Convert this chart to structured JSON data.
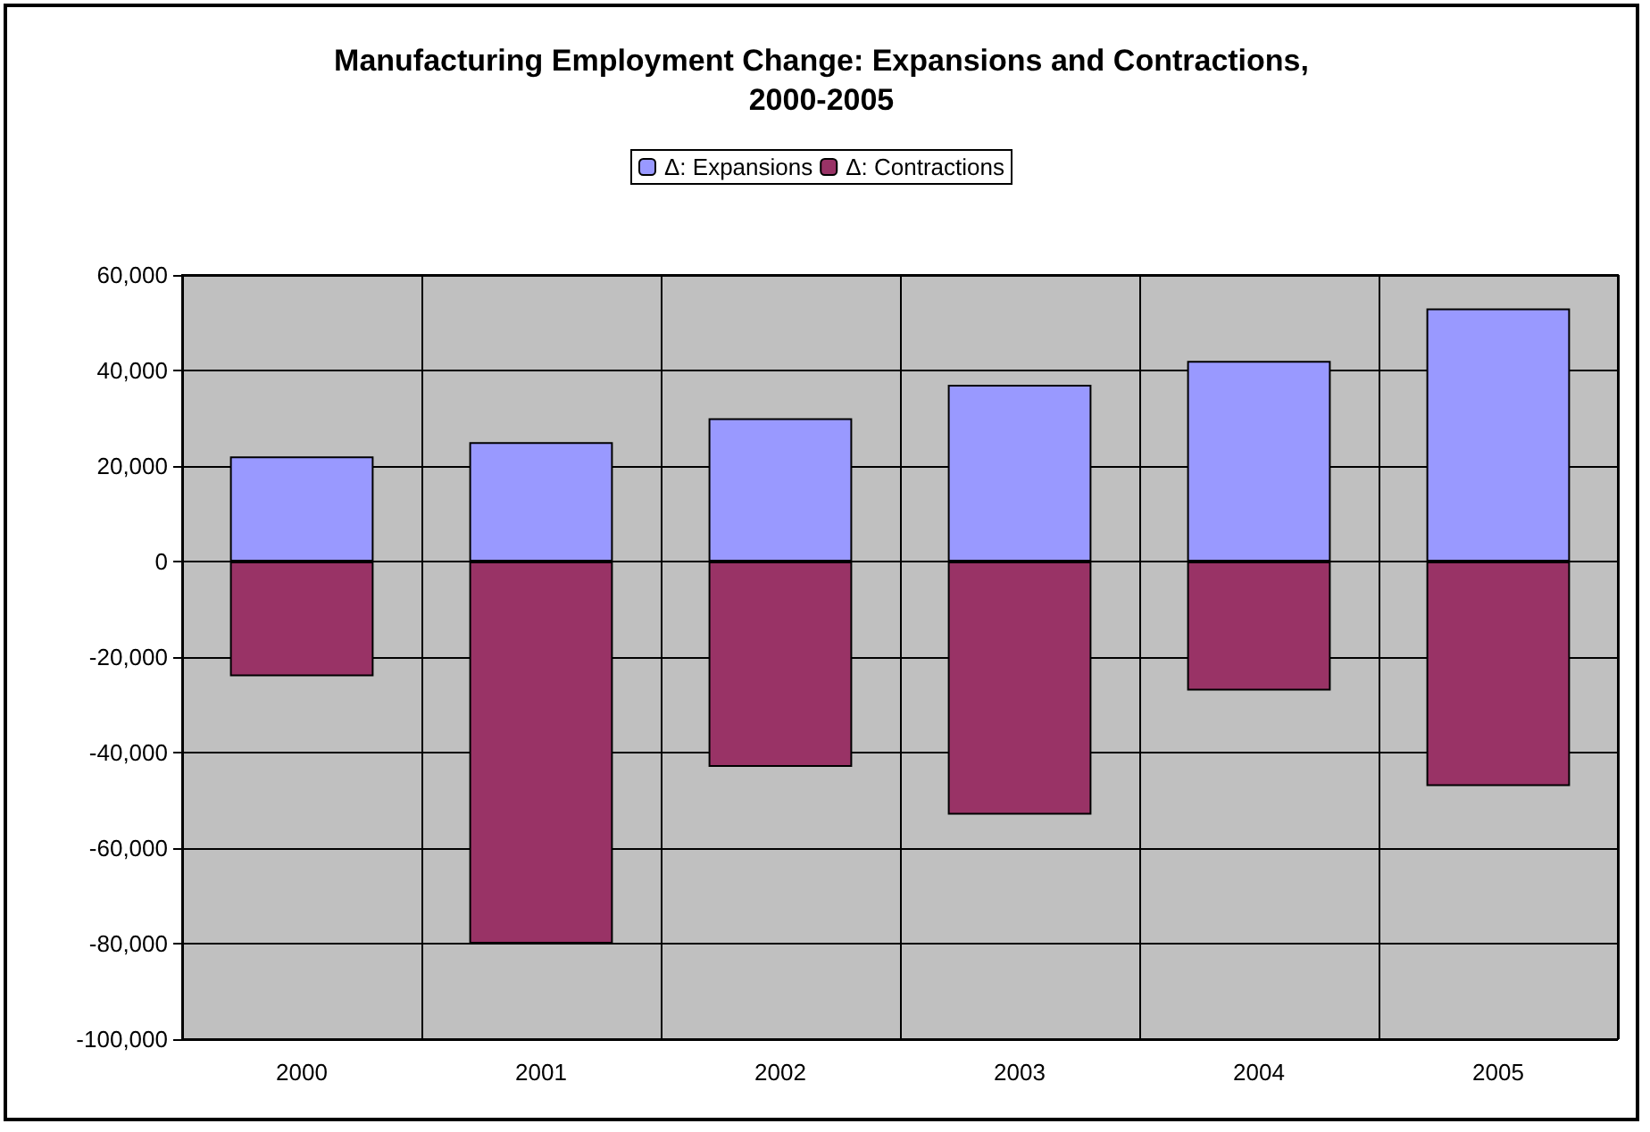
{
  "chart_data": {
    "type": "bar",
    "title": "Manufacturing Employment Change: Expansions and Contractions,\n2000-2005",
    "categories": [
      "2000",
      "2001",
      "2002",
      "2003",
      "2004",
      "2005"
    ],
    "series": [
      {
        "name": "Δ: Expansions",
        "color": "#9999ff",
        "values": [
          22000,
          25000,
          30000,
          37000,
          42000,
          53000
        ]
      },
      {
        "name": "Δ: Contractions",
        "color": "#993366",
        "values": [
          -24000,
          -80000,
          -43000,
          -53000,
          -27000,
          -47000
        ]
      }
    ],
    "stacked": true,
    "ylim": [
      -100000,
      60000
    ],
    "yticks": [
      {
        "value": -100000,
        "label": "-100,000"
      },
      {
        "value": -80000,
        "label": "-80,000"
      },
      {
        "value": -60000,
        "label": "-60,000"
      },
      {
        "value": -40000,
        "label": "-40,000"
      },
      {
        "value": -20000,
        "label": "-20,000"
      },
      0,
      {
        "value": 20000,
        "label": "20,000"
      },
      {
        "value": 40000,
        "label": "40,000"
      },
      {
        "value": 60000,
        "label": "60,000"
      }
    ],
    "grid": true,
    "legend": "top"
  }
}
